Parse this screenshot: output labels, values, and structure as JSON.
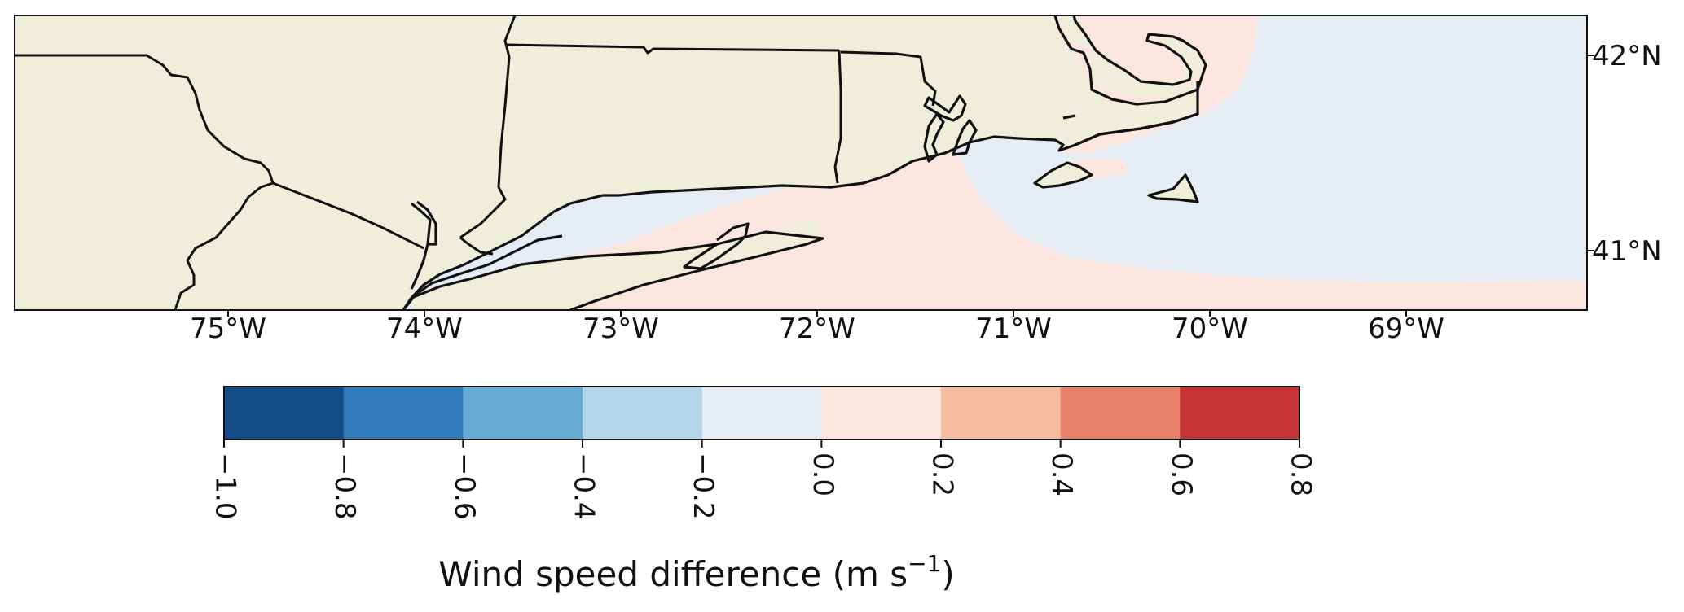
{
  "map": {
    "lon_ticks": [
      "75°W",
      "74°W",
      "73°W",
      "72°W",
      "71°W",
      "70°W",
      "69°W"
    ],
    "lat_ticks": [
      "42°N",
      "41°N"
    ],
    "land_color": "#efeedb",
    "positive_field_color": "#fae6df",
    "negative_field_color": "#e5ecf4",
    "coastline_color": "#111111"
  },
  "colorbar": {
    "ticks": [
      "−1.0",
      "−0.8",
      "−0.6",
      "−0.4",
      "−0.2",
      "0.0",
      "0.2",
      "0.4",
      "0.6",
      "0.8"
    ],
    "colors": [
      "#134b87",
      "#307cbb",
      "#65abd3",
      "#b2d5e7",
      "#e5ecf4",
      "#fae6df",
      "#f5bca0",
      "#e58269",
      "#c53334"
    ],
    "label_main": "Wind speed difference (m s",
    "label_sup": "−1",
    "label_end": ")"
  }
}
